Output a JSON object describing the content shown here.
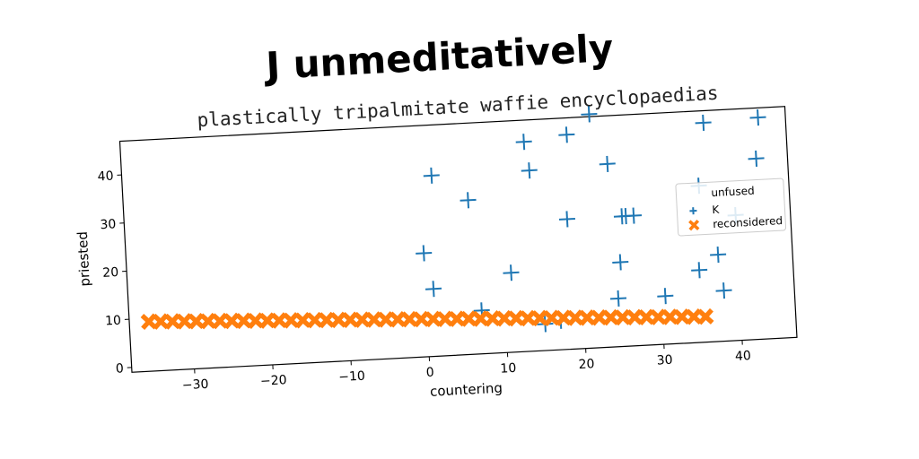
{
  "chart_data": {
    "type": "scatter",
    "title": "J unmeditatively",
    "subtitle": "plastically tripalmitate waffie encyclopaedias",
    "xlabel": "countering",
    "ylabel": "priested",
    "xlim": [
      -38,
      47
    ],
    "ylim": [
      -1,
      47
    ],
    "xticks": [
      -30,
      -20,
      -10,
      0,
      10,
      20,
      30,
      40
    ],
    "yticks": [
      0,
      10,
      20,
      30,
      40
    ],
    "grid": false,
    "legend": {
      "title": "unfused",
      "placement": "right",
      "entries": [
        "K",
        "reconsidered"
      ]
    },
    "series": [
      {
        "name": "K",
        "marker": "plus",
        "color": "#1f77b4",
        "x": [
          0,
          1,
          1.5,
          6,
          7,
          11,
          13.5,
          14,
          15,
          17,
          18.5,
          19,
          22,
          24,
          24.5,
          25,
          25.5,
          26,
          27,
          30.5,
          35,
          35.5,
          36.5,
          37.5,
          38,
          40,
          43,
          43.5
        ],
        "y": [
          20.5,
          13,
          36.5,
          31,
          8,
          15.5,
          42.5,
          36.5,
          4.5,
          5,
          26,
          43.5,
          47.5,
          37,
          9,
          16.5,
          26,
          26,
          26,
          9,
          14,
          31.5,
          44.5,
          17,
          9.5,
          25,
          36.5,
          45
        ]
      },
      {
        "name": "reconsidered",
        "marker": "x-filled",
        "color": "#ff7f0e",
        "line": {
          "x_start": -35.5,
          "y_start": 9.3,
          "x_end": 35.5,
          "y_end": 4.3,
          "count": 48
        }
      }
    ]
  }
}
